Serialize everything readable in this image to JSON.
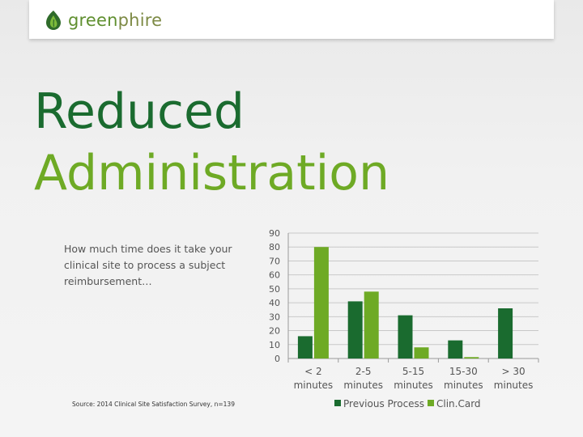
{
  "brand": {
    "name_part1": "green",
    "name_part2": "phire",
    "icon": "flame-leaf-icon",
    "color_dark": "#1a6b2f",
    "color_light": "#6eaa25"
  },
  "title": {
    "line1": "Reduced",
    "line2": "Administration"
  },
  "question": "How much time does it take your clinical site to process a subject reimbursement…",
  "source": "Source: 2014 Clinical Site Satisfaction Survey, n=139",
  "chart_data": {
    "type": "bar",
    "categories": [
      [
        "< 2",
        "minutes"
      ],
      [
        "2-5",
        "minutes"
      ],
      [
        "5-15",
        "minutes"
      ],
      [
        "15-30",
        "minutes"
      ],
      [
        "> 30",
        "minutes"
      ]
    ],
    "series": [
      {
        "name": "Previous Process",
        "color": "#1a6b2f",
        "values": [
          16,
          41,
          31,
          13,
          36
        ]
      },
      {
        "name": "Clin.Card",
        "color": "#6eaa25",
        "values": [
          80,
          48,
          8,
          1,
          0
        ]
      }
    ],
    "yticks": [
      "0",
      "10",
      "20",
      "30",
      "40",
      "50",
      "60",
      "70",
      "80",
      "90"
    ],
    "ylim": [
      0,
      90
    ],
    "grid": true,
    "legend_position": "bottom"
  }
}
